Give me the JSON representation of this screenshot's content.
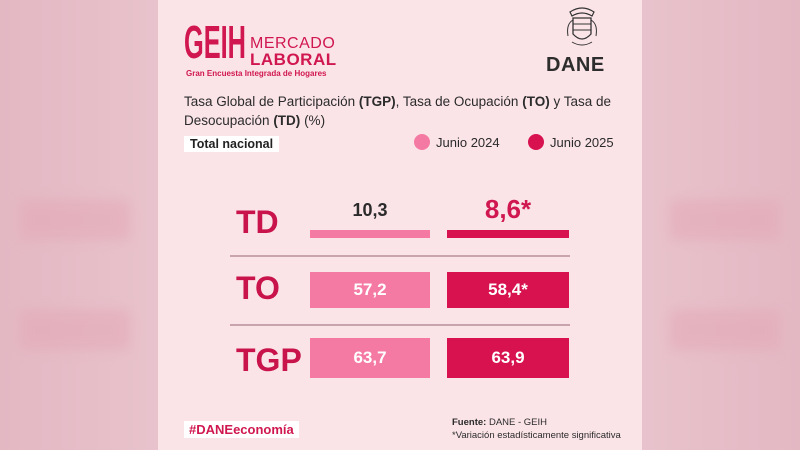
{
  "header": {
    "logo_geih": "GEIH",
    "logo_mercado": "MERCADO",
    "logo_laboral": "LABORAL",
    "logo_subtitle": "Gran Encuesta Integrada de Hogares",
    "institution": "DANE",
    "seal_icon": "colombia-coat-of-arms-icon"
  },
  "subtitle": {
    "p1": "Tasa Global de Participación ",
    "b1": "(TGP)",
    "p2": ", Tasa de Ocupación ",
    "b2": "(TO)",
    "p3": " y Tasa de Desocupación ",
    "b3": "(TD)",
    "p4": " (%)"
  },
  "scope": "Total nacional",
  "legend": [
    {
      "label": "Junio 2024",
      "color": "#f57aa3"
    },
    {
      "label": "Junio 2025",
      "color": "#d8114f"
    }
  ],
  "chart_data": {
    "type": "bar",
    "categories": [
      "TD",
      "TO",
      "TGP"
    ],
    "series": [
      {
        "name": "Junio 2024",
        "values": [
          10.3,
          57.2,
          63.7
        ],
        "labels": [
          "10,3",
          "57,2",
          "63,7"
        ],
        "color": "#f57aa3"
      },
      {
        "name": "Junio 2025",
        "values": [
          8.6,
          58.4,
          63.9
        ],
        "labels": [
          "8,6*",
          "58,4*",
          "63,9"
        ],
        "color": "#d8114f"
      }
    ]
  },
  "footer": {
    "hashtag": "#DANEeconomía",
    "source_label": "Fuente:",
    "source_value": " DANE - GEIH",
    "note": "*Variación estadísticamente significativa"
  }
}
